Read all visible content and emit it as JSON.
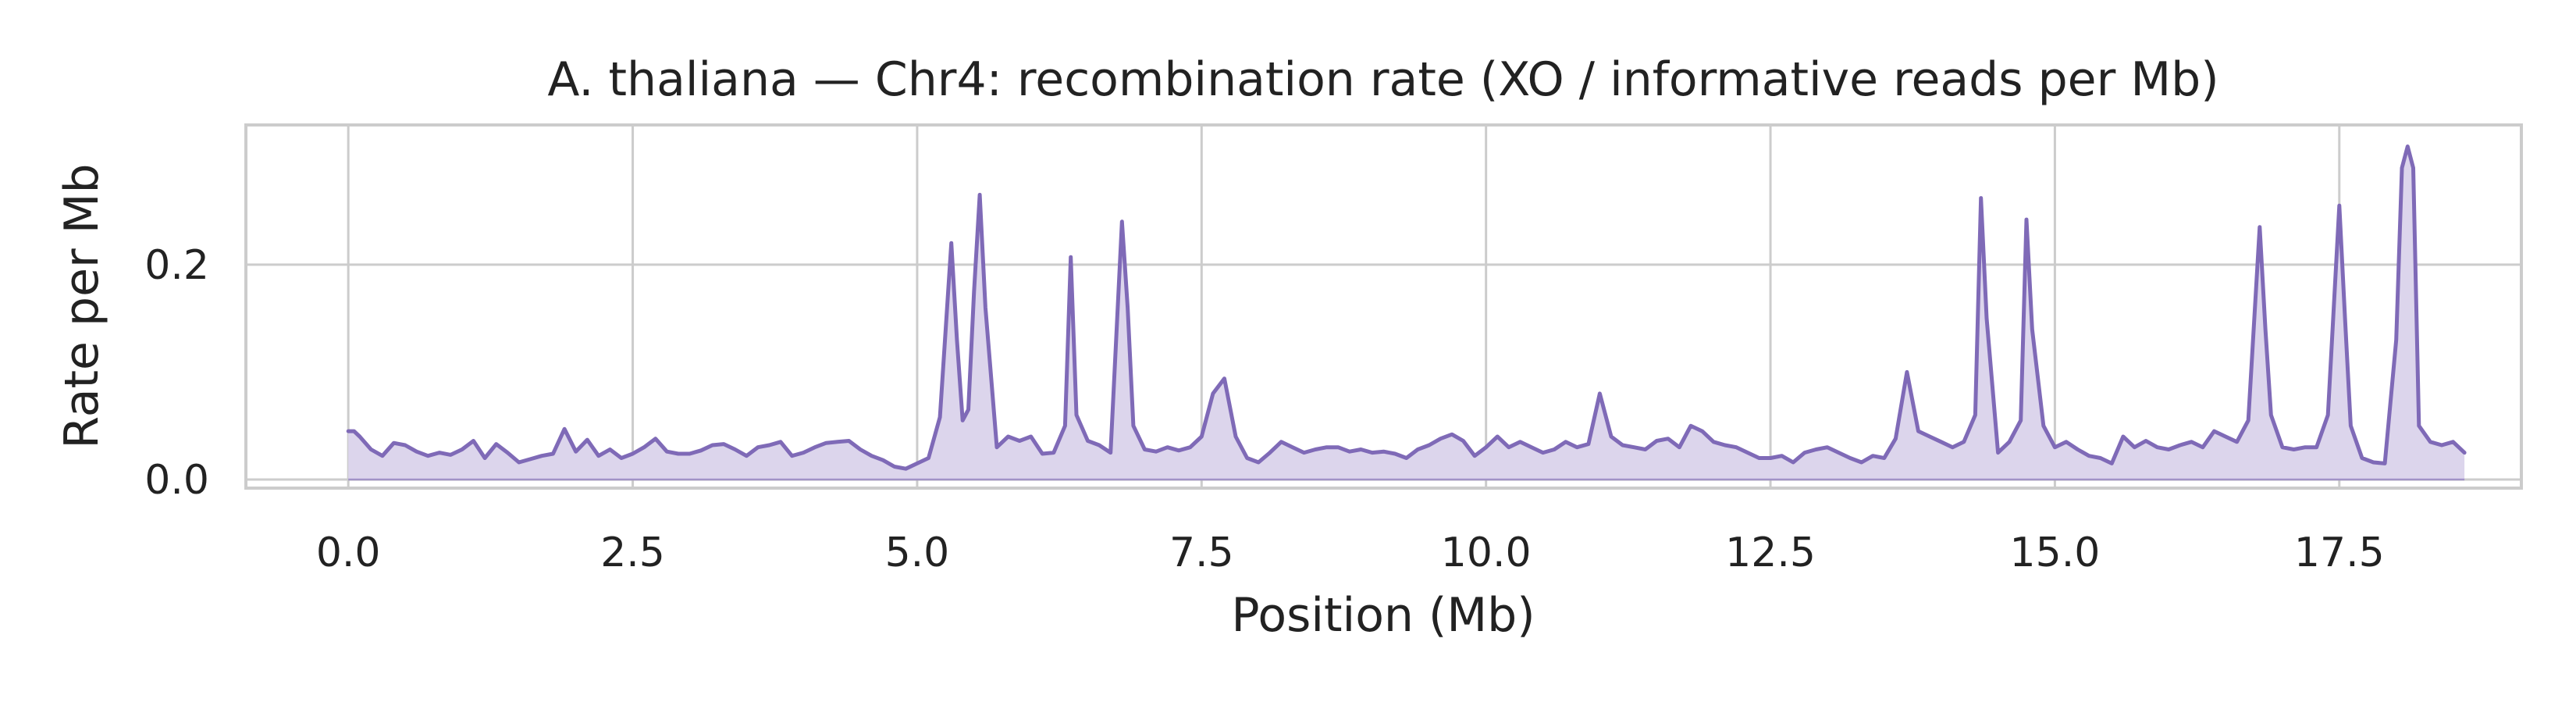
{
  "chart_data": {
    "type": "area",
    "title": "A. thaliana — Chr4: recombination rate (XO / informative reads per Mb)",
    "xlabel": "Position (Mb)",
    "ylabel": "Rate per Mb",
    "xlim": [
      -0.9,
      19.1
    ],
    "ylim": [
      -0.008,
      0.33
    ],
    "xticks": [
      0.0,
      2.5,
      5.0,
      7.5,
      10.0,
      12.5,
      15.0,
      17.5
    ],
    "xtick_labels": [
      "0.0",
      "2.5",
      "5.0",
      "7.5",
      "10.0",
      "12.5",
      "15.0",
      "17.5"
    ],
    "yticks": [
      0.0,
      0.2
    ],
    "ytick_labels": [
      "0.0",
      "0.2"
    ],
    "grid": true,
    "colors": {
      "line": "#7f6ab7",
      "fill": "#dcd5ec",
      "grid": "#cccccc",
      "spine": "#cccccc",
      "text": "#222222"
    },
    "series": [
      {
        "x": [
          0.0,
          0.05,
          0.1,
          0.2,
          0.3,
          0.4,
          0.5,
          0.6,
          0.7,
          0.8,
          0.9,
          1.0,
          1.1,
          1.2,
          1.3,
          1.4,
          1.5,
          1.6,
          1.7,
          1.8,
          1.9,
          2.0,
          2.1,
          2.2,
          2.3,
          2.4,
          2.5,
          2.6,
          2.7,
          2.8,
          2.9,
          3.0,
          3.1,
          3.2,
          3.3,
          3.4,
          3.5,
          3.6,
          3.7,
          3.8,
          3.9,
          4.0,
          4.1,
          4.2,
          4.3,
          4.4,
          4.5,
          4.6,
          4.7,
          4.8,
          4.9,
          5.0,
          5.1,
          5.2,
          5.3,
          5.35,
          5.4,
          5.45,
          5.5,
          5.55,
          5.6,
          5.7,
          5.8,
          5.9,
          6.0,
          6.1,
          6.2,
          6.3,
          6.35,
          6.4,
          6.5,
          6.6,
          6.7,
          6.8,
          6.85,
          6.9,
          7.0,
          7.1,
          7.2,
          7.3,
          7.4,
          7.5,
          7.6,
          7.7,
          7.8,
          7.9,
          8.0,
          8.1,
          8.2,
          8.3,
          8.4,
          8.5,
          8.6,
          8.7,
          8.8,
          8.9,
          9.0,
          9.1,
          9.2,
          9.3,
          9.4,
          9.5,
          9.6,
          9.7,
          9.8,
          9.9,
          10.0,
          10.1,
          10.2,
          10.3,
          10.4,
          10.5,
          10.6,
          10.7,
          10.8,
          10.9,
          11.0,
          11.1,
          11.2,
          11.3,
          11.4,
          11.5,
          11.6,
          11.7,
          11.8,
          11.9,
          12.0,
          12.1,
          12.2,
          12.3,
          12.4,
          12.5,
          12.6,
          12.7,
          12.8,
          12.9,
          13.0,
          13.1,
          13.2,
          13.3,
          13.4,
          13.5,
          13.6,
          13.7,
          13.8,
          13.9,
          14.0,
          14.1,
          14.2,
          14.3,
          14.35,
          14.4,
          14.5,
          14.6,
          14.7,
          14.75,
          14.8,
          14.9,
          15.0,
          15.1,
          15.2,
          15.3,
          15.4,
          15.5,
          15.6,
          15.7,
          15.8,
          15.9,
          16.0,
          16.1,
          16.2,
          16.3,
          16.4,
          16.5,
          16.6,
          16.7,
          16.8,
          16.85,
          16.9,
          17.0,
          17.1,
          17.2,
          17.3,
          17.4,
          17.5,
          17.55,
          17.6,
          17.7,
          17.8,
          17.9,
          18.0,
          18.05,
          18.1,
          18.15,
          18.2,
          18.3,
          18.4,
          18.5,
          18.6
        ],
        "values": [
          0.045,
          0.045,
          0.04,
          0.028,
          0.022,
          0.034,
          0.032,
          0.026,
          0.022,
          0.025,
          0.023,
          0.028,
          0.036,
          0.02,
          0.033,
          0.025,
          0.016,
          0.019,
          0.022,
          0.024,
          0.047,
          0.026,
          0.037,
          0.022,
          0.028,
          0.02,
          0.024,
          0.03,
          0.038,
          0.026,
          0.024,
          0.024,
          0.027,
          0.032,
          0.033,
          0.028,
          0.022,
          0.03,
          0.032,
          0.035,
          0.022,
          0.025,
          0.03,
          0.034,
          0.035,
          0.036,
          0.028,
          0.022,
          0.018,
          0.012,
          0.01,
          0.015,
          0.02,
          0.058,
          0.22,
          0.13,
          0.055,
          0.065,
          0.175,
          0.265,
          0.16,
          0.03,
          0.04,
          0.036,
          0.04,
          0.024,
          0.025,
          0.05,
          0.207,
          0.06,
          0.036,
          0.032,
          0.025,
          0.24,
          0.16,
          0.05,
          0.028,
          0.026,
          0.03,
          0.027,
          0.03,
          0.04,
          0.08,
          0.094,
          0.04,
          0.02,
          0.016,
          0.025,
          0.035,
          0.03,
          0.025,
          0.028,
          0.03,
          0.03,
          0.026,
          0.028,
          0.025,
          0.026,
          0.024,
          0.02,
          0.028,
          0.032,
          0.038,
          0.042,
          0.036,
          0.022,
          0.03,
          0.04,
          0.03,
          0.035,
          0.03,
          0.025,
          0.028,
          0.035,
          0.03,
          0.033,
          0.08,
          0.04,
          0.032,
          0.03,
          0.028,
          0.036,
          0.038,
          0.03,
          0.05,
          0.045,
          0.035,
          0.032,
          0.03,
          0.025,
          0.02,
          0.02,
          0.022,
          0.016,
          0.025,
          0.028,
          0.03,
          0.025,
          0.02,
          0.016,
          0.022,
          0.02,
          0.038,
          0.1,
          0.045,
          0.04,
          0.035,
          0.03,
          0.035,
          0.06,
          0.262,
          0.15,
          0.025,
          0.035,
          0.055,
          0.242,
          0.14,
          0.05,
          0.03,
          0.035,
          0.028,
          0.022,
          0.02,
          0.015,
          0.04,
          0.03,
          0.036,
          0.03,
          0.028,
          0.032,
          0.035,
          0.03,
          0.045,
          0.04,
          0.035,
          0.055,
          0.235,
          0.14,
          0.06,
          0.03,
          0.028,
          0.03,
          0.03,
          0.06,
          0.255,
          0.15,
          0.05,
          0.02,
          0.016,
          0.015,
          0.13,
          0.29,
          0.31,
          0.29,
          0.05,
          0.035,
          0.032,
          0.035,
          0.025
        ]
      }
    ]
  }
}
